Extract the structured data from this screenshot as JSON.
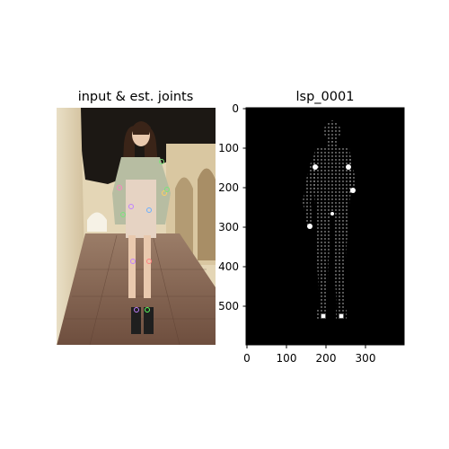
{
  "left_panel": {
    "title": "input & est. joints"
  },
  "right_panel": {
    "title": "lsp_0001",
    "x_ticks": [
      "0",
      "100",
      "200",
      "300"
    ],
    "y_ticks": [
      "0",
      "100",
      "200",
      "300",
      "400",
      "500"
    ]
  },
  "colors": {
    "background": "#ffffff",
    "mesh_bg": "#000000",
    "mesh": "#ffffff"
  }
}
